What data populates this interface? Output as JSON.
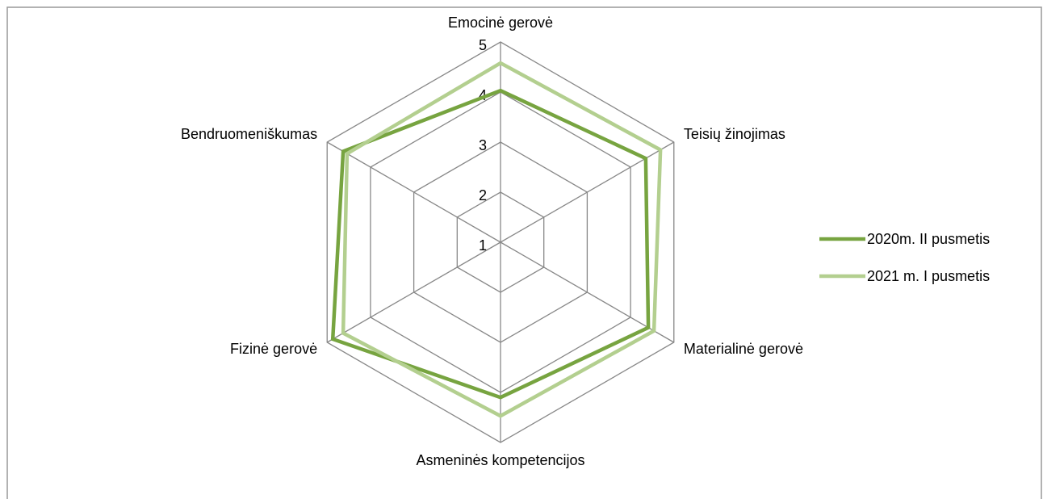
{
  "chart_data": {
    "type": "radar",
    "categories": [
      "Emocinė gerovė",
      "Teisių žinojimas",
      "Materialinė gerovė",
      "Asmeninės kompetencijos",
      "Fizinė gerovė",
      "Bendruomeniškumas"
    ],
    "series": [
      {
        "name": "2020m. II pusmetis",
        "color": "#77a440",
        "values": [
          4.03,
          4.35,
          4.41,
          4.1,
          4.87,
          4.63
        ]
      },
      {
        "name": "2021 m. I pusmetis",
        "color": "#b3cf8f",
        "values": [
          4.58,
          4.69,
          4.54,
          4.47,
          4.63,
          4.54
        ]
      }
    ],
    "ylim": [
      1,
      5
    ],
    "yticks": [
      1,
      2,
      3,
      4,
      5
    ],
    "grid": true,
    "legend": "right"
  }
}
